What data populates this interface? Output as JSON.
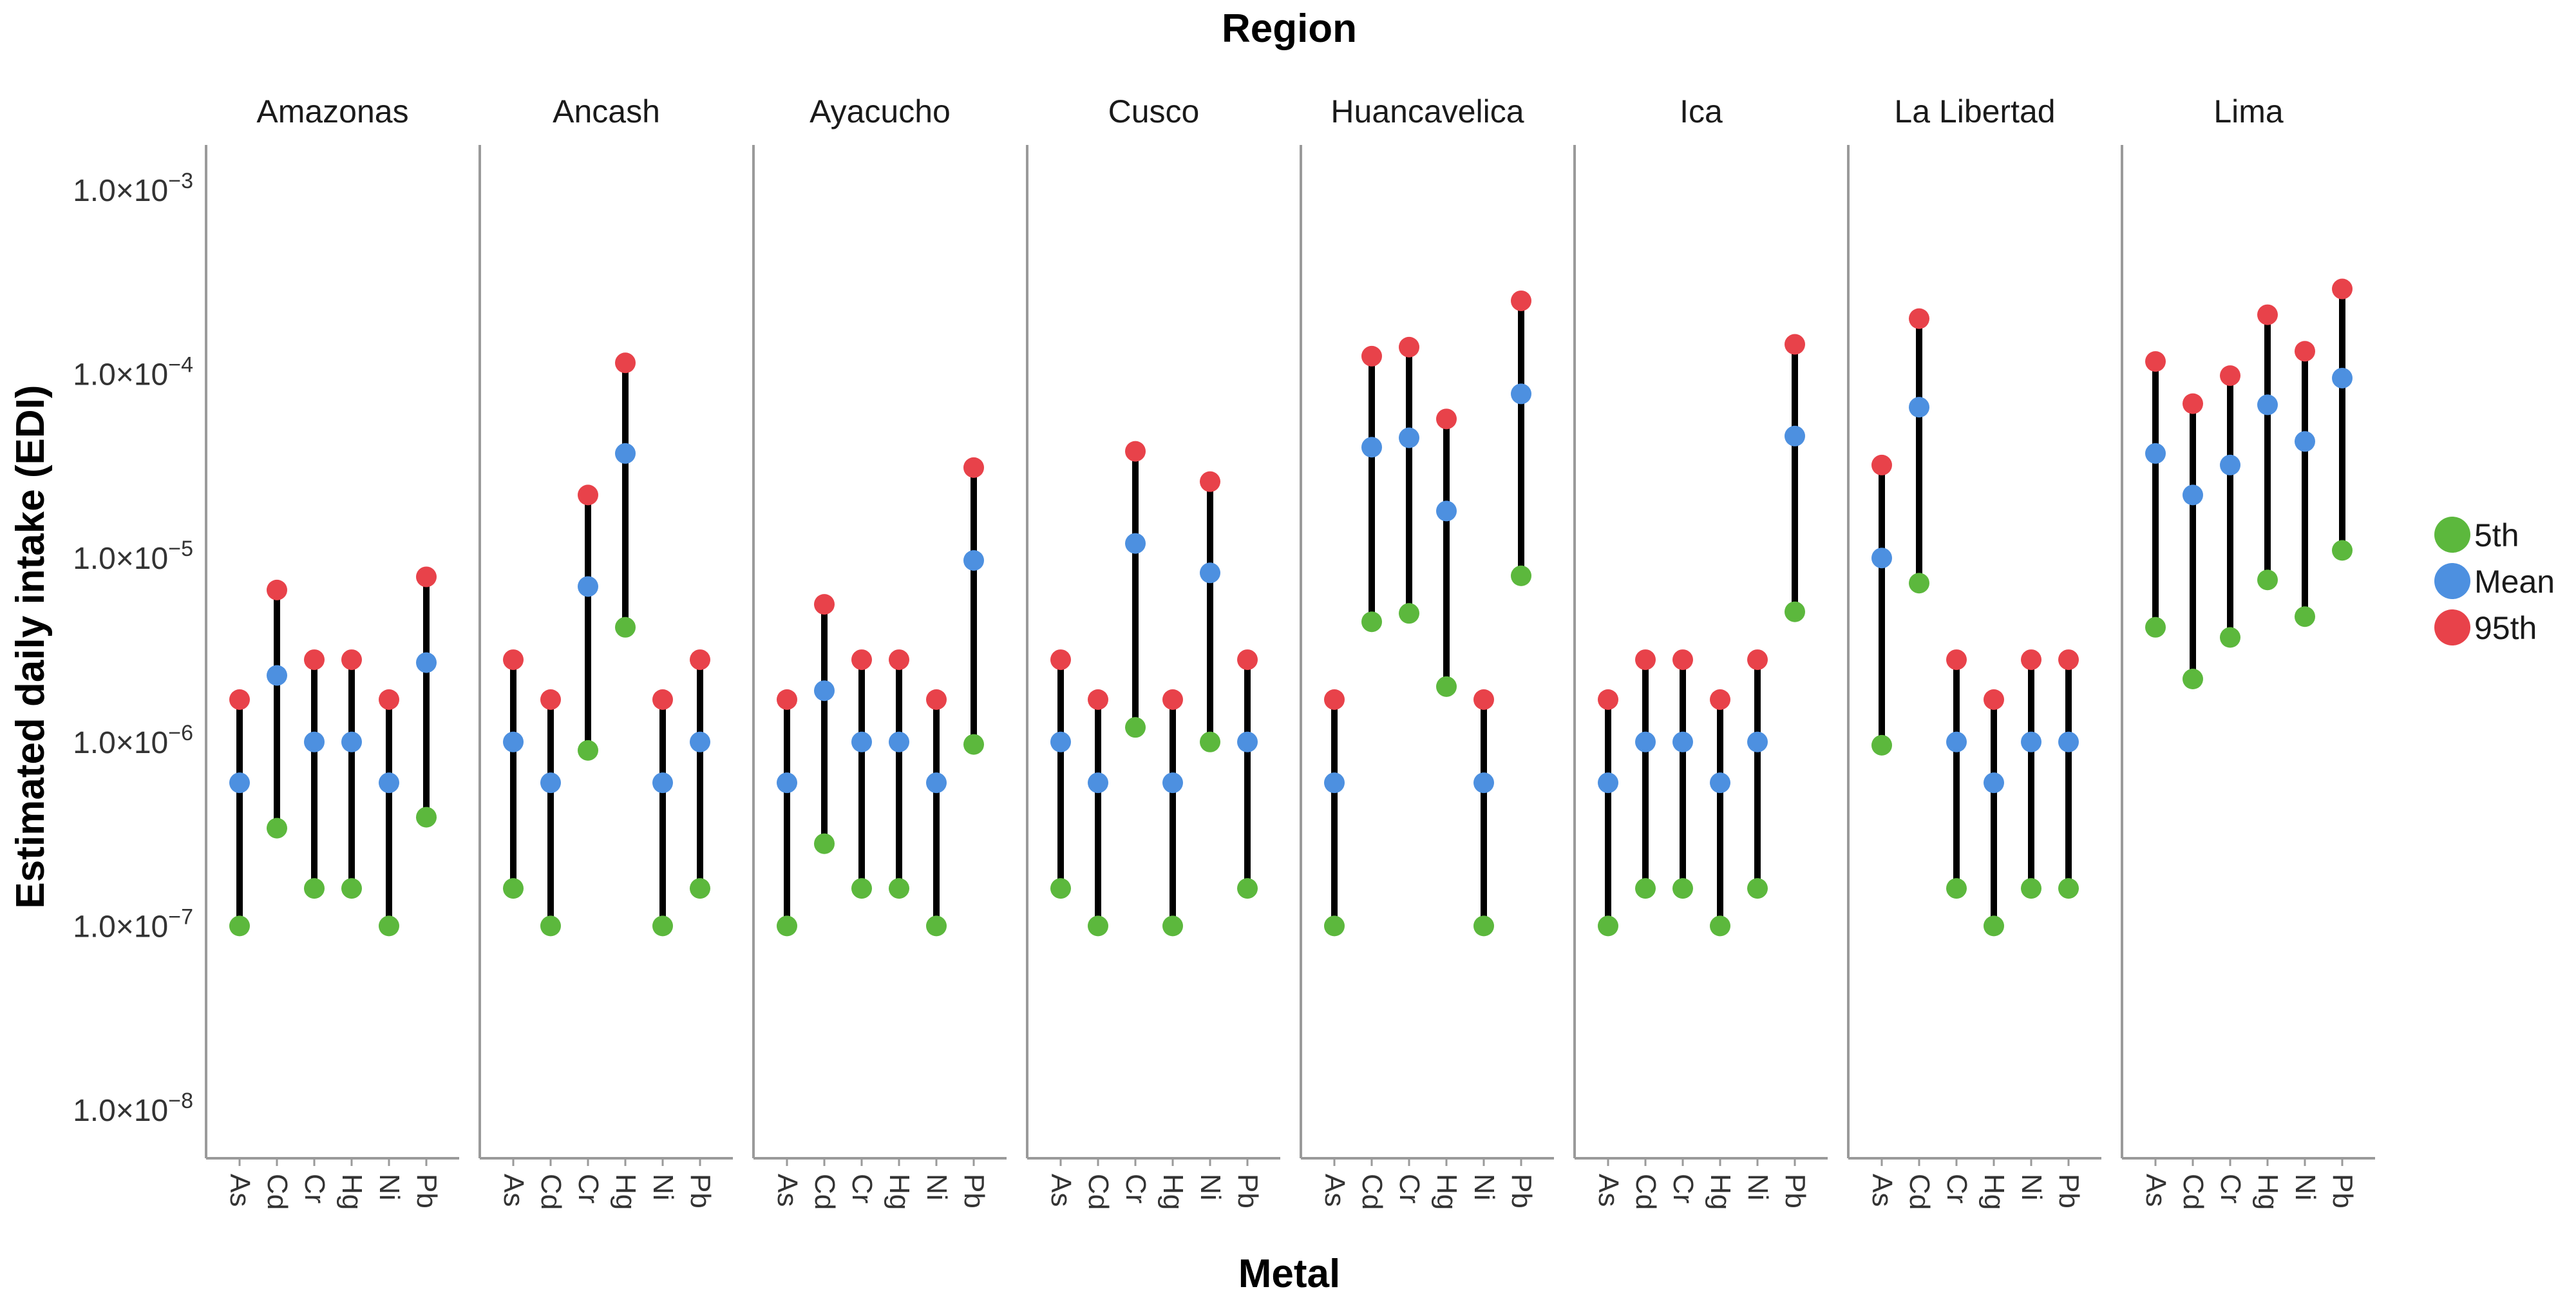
{
  "chart_data": {
    "type": "faceted-range-dot",
    "facet_title": "Region",
    "xlabel": "Metal",
    "ylabel": "Estimated daily intake (EDI)",
    "yscale": "log10",
    "ylim": [
      1e-08,
      0.001
    ],
    "y_ticks": [
      {
        "value": 0.001,
        "mant": "1.0×10",
        "exp": "−3"
      },
      {
        "value": 0.0001,
        "mant": "1.0×10",
        "exp": "−4"
      },
      {
        "value": 1e-05,
        "mant": "1.0×10",
        "exp": "−5"
      },
      {
        "value": 1e-06,
        "mant": "1.0×10",
        "exp": "−6"
      },
      {
        "value": 1e-07,
        "mant": "1.0×10",
        "exp": "−7"
      },
      {
        "value": 1e-08,
        "mant": "1.0×10",
        "exp": "−8"
      }
    ],
    "metals": [
      "As",
      "Cd",
      "Cr",
      "Hg",
      "Ni",
      "Pb"
    ],
    "legend": [
      {
        "key": "p5",
        "label": "5th",
        "color": "#5cb83d"
      },
      {
        "key": "mean",
        "label": "Mean",
        "color": "#4d90e0"
      },
      {
        "key": "p95",
        "label": "95th",
        "color": "#e8424a"
      }
    ],
    "panels": [
      {
        "region": "Amazonas",
        "p5": [
          1e-07,
          3.4e-07,
          1.6e-07,
          1.6e-07,
          1e-07,
          3.9e-07
        ],
        "mean": [
          6e-07,
          2.3e-06,
          1e-06,
          1e-06,
          6e-07,
          2.7e-06
        ],
        "p95": [
          1.7e-06,
          6.7e-06,
          2.8e-06,
          2.8e-06,
          1.7e-06,
          7.9e-06
        ]
      },
      {
        "region": "Ancash",
        "p5": [
          1.6e-07,
          1e-07,
          9e-07,
          4.2e-06,
          1e-07,
          1.6e-07
        ],
        "mean": [
          1e-06,
          6e-07,
          7e-06,
          3.7e-05,
          6e-07,
          1e-06
        ],
        "p95": [
          2.8e-06,
          1.7e-06,
          2.2e-05,
          0.000115,
          1.7e-06,
          2.8e-06
        ]
      },
      {
        "region": "Ayacucho",
        "p5": [
          1e-07,
          2.8e-07,
          1.6e-07,
          1.6e-07,
          1e-07,
          9.7e-07
        ],
        "mean": [
          6e-07,
          1.9e-06,
          1e-06,
          1e-06,
          6e-07,
          9.7e-06
        ],
        "p95": [
          1.7e-06,
          5.6e-06,
          2.8e-06,
          2.8e-06,
          1.7e-06,
          3.1e-05
        ]
      },
      {
        "region": "Cusco",
        "p5": [
          1.6e-07,
          1e-07,
          1.2e-06,
          1e-07,
          1e-06,
          1.6e-07
        ],
        "mean": [
          1e-06,
          6e-07,
          1.2e-05,
          6e-07,
          8.3e-06,
          1e-06
        ],
        "p95": [
          2.8e-06,
          1.7e-06,
          3.8e-05,
          1.7e-06,
          2.6e-05,
          2.8e-06
        ]
      },
      {
        "region": "Huancavelica",
        "p5": [
          1e-07,
          4.5e-06,
          5e-06,
          2e-06,
          1e-07,
          8e-06
        ],
        "mean": [
          6e-07,
          4e-05,
          4.5e-05,
          1.8e-05,
          6e-07,
          7.8e-05
        ],
        "p95": [
          1.7e-06,
          0.000125,
          0.00014,
          5.7e-05,
          1.7e-06,
          0.00025
        ]
      },
      {
        "region": "Ica",
        "p5": [
          1e-07,
          1.6e-07,
          1.6e-07,
          1e-07,
          1.6e-07,
          5.1e-06
        ],
        "mean": [
          6e-07,
          1e-06,
          1e-06,
          6e-07,
          1e-06,
          4.6e-05
        ],
        "p95": [
          1.7e-06,
          2.8e-06,
          2.8e-06,
          1.7e-06,
          2.8e-06,
          0.000145
        ]
      },
      {
        "region": "La Libertad",
        "p5": [
          9.6e-07,
          7.3e-06,
          1.6e-07,
          1e-07,
          1.6e-07,
          1.6e-07
        ],
        "mean": [
          1e-05,
          6.6e-05,
          1e-06,
          6e-07,
          1e-06,
          1e-06
        ],
        "p95": [
          3.2e-05,
          0.0002,
          2.8e-06,
          1.7e-06,
          2.8e-06,
          2.8e-06
        ]
      },
      {
        "region": "Lima",
        "p5": [
          4.2e-06,
          2.2e-06,
          3.7e-06,
          7.6e-06,
          4.8e-06,
          1.1e-05
        ],
        "mean": [
          3.7e-05,
          2.2e-05,
          3.2e-05,
          6.8e-05,
          4.3e-05,
          9.5e-05
        ],
        "p95": [
          0.000117,
          6.9e-05,
          9.8e-05,
          0.00021,
          0.000133,
          0.00029
        ]
      }
    ]
  }
}
